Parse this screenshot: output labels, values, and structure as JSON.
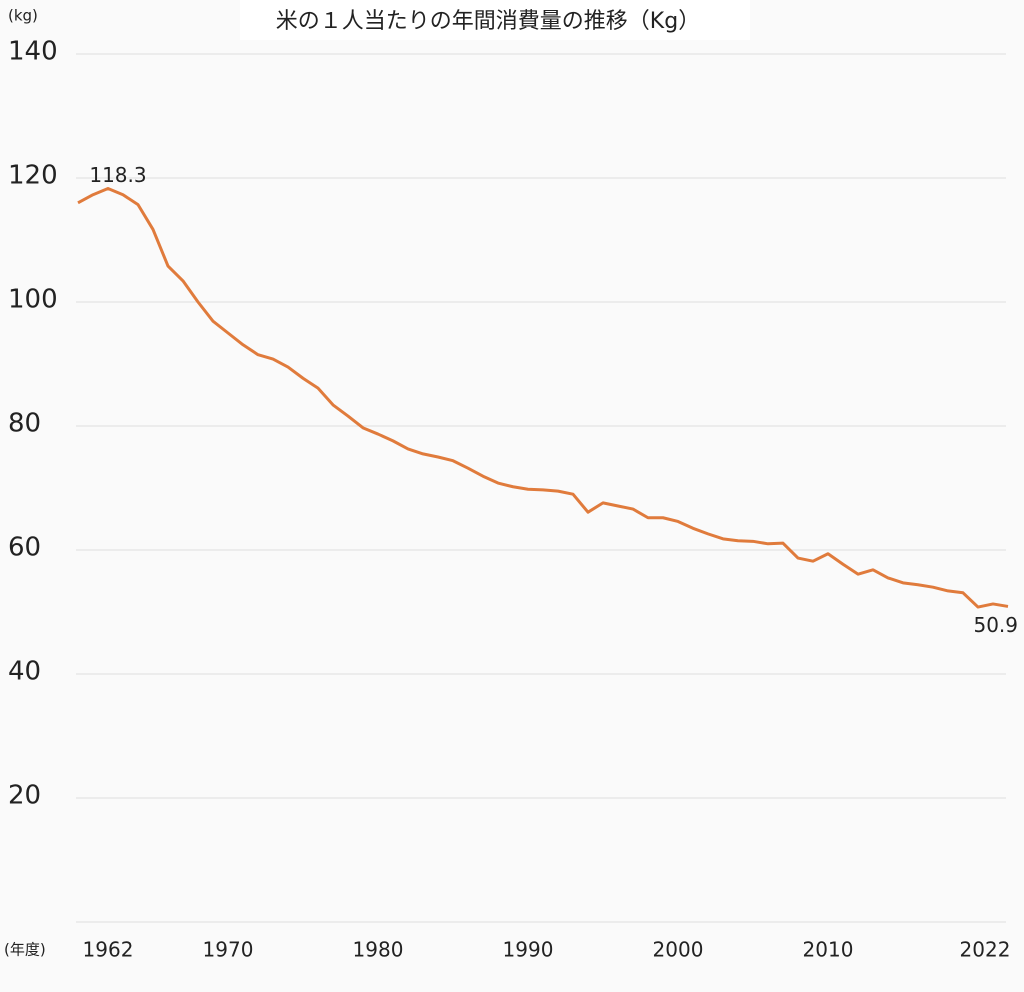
{
  "chart_data": {
    "type": "line",
    "title": "米の１人当たりの年間消費量の推移（Kg）",
    "y_label": "(kg)",
    "x_label": "(年度)",
    "x": [
      1960,
      1961,
      1962,
      1963,
      1964,
      1965,
      1966,
      1967,
      1968,
      1969,
      1970,
      1971,
      1972,
      1973,
      1974,
      1975,
      1976,
      1977,
      1978,
      1979,
      1980,
      1981,
      1982,
      1983,
      1984,
      1985,
      1986,
      1987,
      1988,
      1989,
      1990,
      1991,
      1992,
      1993,
      1994,
      1995,
      1996,
      1997,
      1998,
      1999,
      2000,
      2001,
      2002,
      2003,
      2004,
      2005,
      2006,
      2007,
      2008,
      2009,
      2010,
      2011,
      2012,
      2013,
      2014,
      2015,
      2016,
      2017,
      2018,
      2019,
      2020,
      2021,
      2022
    ],
    "series": [
      {
        "name": "米の１人当たりの年間消費量",
        "color": "#e07b3c",
        "values": [
          116.0,
          117.3,
          118.3,
          117.3,
          115.7,
          111.7,
          105.8,
          103.4,
          100.0,
          96.9,
          95.0,
          93.1,
          91.5,
          90.8,
          89.5,
          87.7,
          86.1,
          83.4,
          81.6,
          79.7,
          78.7,
          77.6,
          76.3,
          75.5,
          75.0,
          74.4,
          73.2,
          71.9,
          70.8,
          70.2,
          69.8,
          69.7,
          69.5,
          69.0,
          66.1,
          67.6,
          67.1,
          66.6,
          65.2,
          65.2,
          64.6,
          63.5,
          62.6,
          61.8,
          61.5,
          61.4,
          61.0,
          61.1,
          58.7,
          58.2,
          59.4,
          57.7,
          56.1,
          56.8,
          55.5,
          54.7,
          54.4,
          54.0,
          53.4,
          53.1,
          50.8,
          51.3,
          50.9
        ]
      }
    ],
    "xlim": [
      1960,
      2022
    ],
    "xticks": [
      1962,
      1970,
      1980,
      1990,
      2000,
      2010,
      2022
    ],
    "ylim": [
      0,
      140
    ],
    "yticks": [
      20,
      40,
      60,
      80,
      100,
      120,
      140
    ],
    "grid": true
  }
}
